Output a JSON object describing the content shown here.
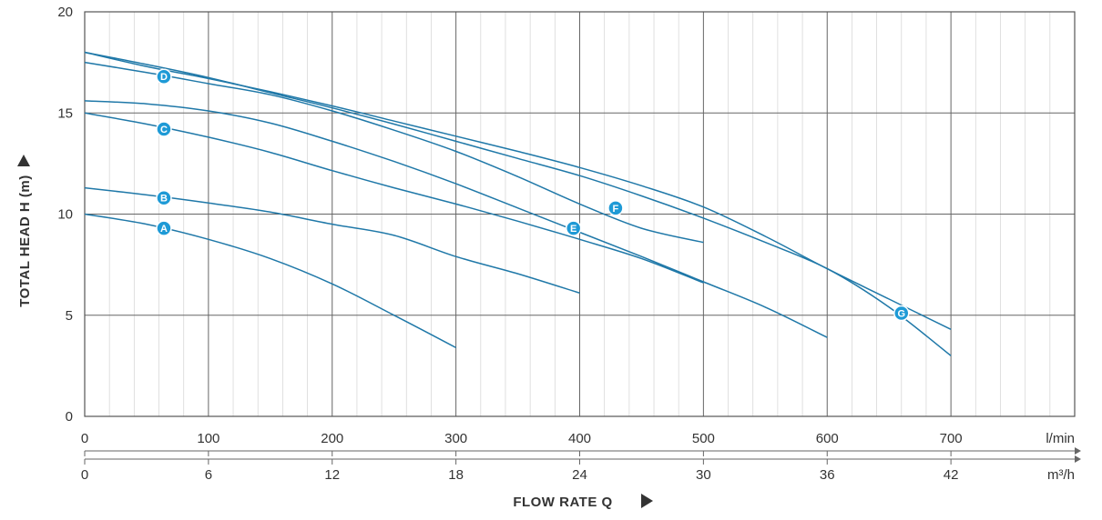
{
  "chart_data": {
    "type": "line",
    "title": "",
    "ylabel": "TOTAL HEAD H (m)",
    "xlabel": "FLOW RATE Q",
    "ylim": [
      0,
      20
    ],
    "xlim": [
      0,
      800
    ],
    "y_ticks": [
      "0",
      "5",
      "10",
      "15",
      "20"
    ],
    "x_ticks_lmin": [
      "0",
      "100",
      "200",
      "300",
      "400",
      "500",
      "600",
      "700"
    ],
    "x_unit_lmin": "l/min",
    "x_ticks_m3h": [
      "0",
      "6",
      "12",
      "18",
      "24",
      "30",
      "36",
      "42"
    ],
    "x_unit_m3h": "m³/h",
    "grid": true,
    "line_color": "#1f78a8",
    "marker_color": "#1e9ad6",
    "series": [
      {
        "name": "A",
        "label_at": [
          64,
          9.3
        ],
        "x": [
          0,
          50,
          100,
          150,
          200,
          250,
          300
        ],
        "y": [
          10.0,
          9.5,
          8.75,
          7.8,
          6.55,
          5.0,
          3.4
        ]
      },
      {
        "name": "B",
        "label_at": [
          64,
          10.8
        ],
        "x": [
          0,
          50,
          100,
          150,
          200,
          250,
          300,
          350,
          400
        ],
        "y": [
          11.3,
          10.95,
          10.55,
          10.1,
          9.5,
          8.95,
          7.9,
          7.05,
          6.1
        ]
      },
      {
        "name": "C",
        "label_at": [
          64,
          14.2
        ],
        "x": [
          0,
          50,
          100,
          150,
          200,
          250,
          300,
          350,
          400,
          450,
          500
        ],
        "y": [
          15.0,
          14.45,
          13.8,
          13.05,
          12.15,
          11.3,
          10.5,
          9.65,
          8.75,
          7.8,
          6.6
        ]
      },
      {
        "name": "D",
        "label_at": [
          64,
          16.8
        ],
        "x": [
          0,
          50,
          100,
          150,
          200,
          250,
          300,
          350,
          400,
          450,
          500
        ],
        "y": [
          17.5,
          17.0,
          16.45,
          15.9,
          15.1,
          14.15,
          13.1,
          11.85,
          10.5,
          9.3,
          8.6
        ]
      },
      {
        "name": "E",
        "label_at": [
          395,
          9.3
        ],
        "x": [
          0,
          50,
          100,
          150,
          200,
          250,
          300,
          350,
          400,
          450,
          500,
          550,
          600
        ],
        "y": [
          15.6,
          15.45,
          15.1,
          14.5,
          13.6,
          12.6,
          11.5,
          10.3,
          9.1,
          7.9,
          6.65,
          5.4,
          3.9
        ]
      },
      {
        "name": "F",
        "label_at": [
          429,
          10.3
        ],
        "x": [
          0,
          50,
          100,
          150,
          200,
          250,
          300,
          350,
          400,
          450,
          500,
          550,
          600,
          650,
          700
        ],
        "y": [
          18.0,
          17.3,
          16.7,
          16.05,
          15.35,
          14.6,
          13.85,
          13.1,
          12.3,
          11.4,
          10.35,
          8.9,
          7.3,
          5.8,
          4.3
        ]
      },
      {
        "name": "G",
        "label_at": [
          660,
          5.1
        ],
        "x": [
          0,
          50,
          100,
          150,
          200,
          250,
          300,
          350,
          400,
          450,
          500,
          550,
          600,
          650,
          700
        ],
        "y": [
          18.0,
          17.4,
          16.75,
          16.0,
          15.25,
          14.45,
          13.6,
          12.75,
          11.9,
          10.9,
          9.8,
          8.6,
          7.3,
          5.4,
          3.0
        ]
      }
    ]
  }
}
